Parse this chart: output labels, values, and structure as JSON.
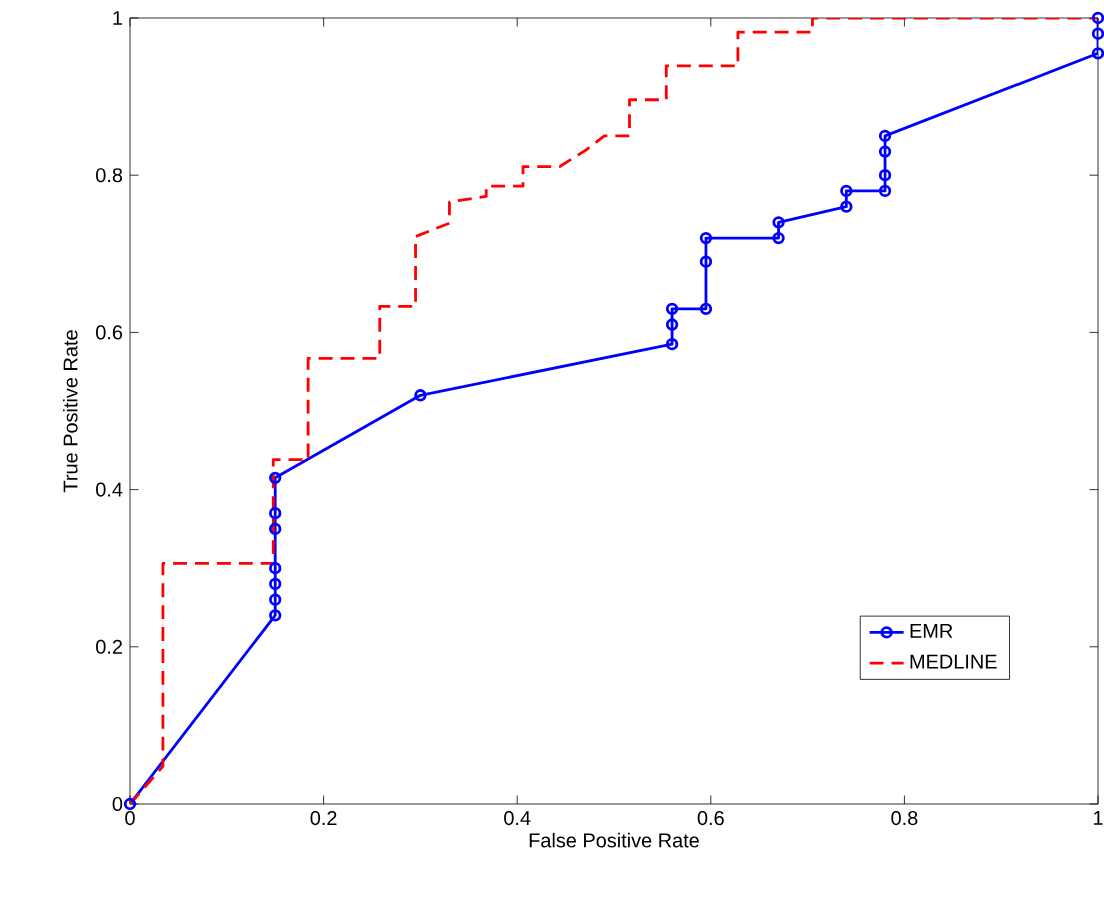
{
  "chart_data": {
    "type": "line",
    "xlabel": "False Positive Rate",
    "ylabel": "True Positive Rate",
    "xlim": [
      0,
      1
    ],
    "ylim": [
      0,
      1
    ],
    "xticks": [
      0,
      0.2,
      0.4,
      0.6,
      0.8,
      1
    ],
    "yticks": [
      0,
      0.2,
      0.4,
      0.6,
      0.8,
      1
    ],
    "grid": false,
    "legend": "bottom right",
    "series": [
      {
        "name": "EMR",
        "color": "#0000ff",
        "marker": "circle",
        "line_style": "solid",
        "x": [
          0,
          0.15,
          0.15,
          0.15,
          0.15,
          0.15,
          0.15,
          0.15,
          0.3,
          0.56,
          0.56,
          0.56,
          0.595,
          0.595,
          0.595,
          0.67,
          0.67,
          0.74,
          0.74,
          0.78,
          0.78,
          0.78,
          0.78,
          1,
          1,
          1
        ],
        "values": [
          0,
          0.24,
          0.26,
          0.28,
          0.3,
          0.35,
          0.37,
          0.415,
          0.52,
          0.585,
          0.61,
          0.63,
          0.63,
          0.69,
          0.72,
          0.72,
          0.74,
          0.76,
          0.78,
          0.78,
          0.8,
          0.83,
          0.85,
          0.955,
          0.98,
          1
        ]
      },
      {
        "name": "MEDLINE",
        "color": "#ff0000",
        "marker": "none",
        "line_style": "dashed",
        "x": [
          0,
          0.034,
          0.034,
          0.148,
          0.148,
          0.184,
          0.184,
          0.258,
          0.258,
          0.295,
          0.295,
          0.33,
          0.33,
          0.368,
          0.368,
          0.406,
          0.406,
          0.444,
          0.471,
          0.49,
          0.516,
          0.516,
          0.554,
          0.554,
          0.628,
          0.628,
          0.705,
          0.705,
          1
        ],
        "values": [
          0,
          0.048,
          0.306,
          0.306,
          0.438,
          0.438,
          0.567,
          0.567,
          0.633,
          0.633,
          0.722,
          0.739,
          0.766,
          0.773,
          0.786,
          0.786,
          0.811,
          0.811,
          0.832,
          0.85,
          0.85,
          0.896,
          0.896,
          0.939,
          0.939,
          0.982,
          0.982,
          1,
          1
        ]
      }
    ]
  }
}
